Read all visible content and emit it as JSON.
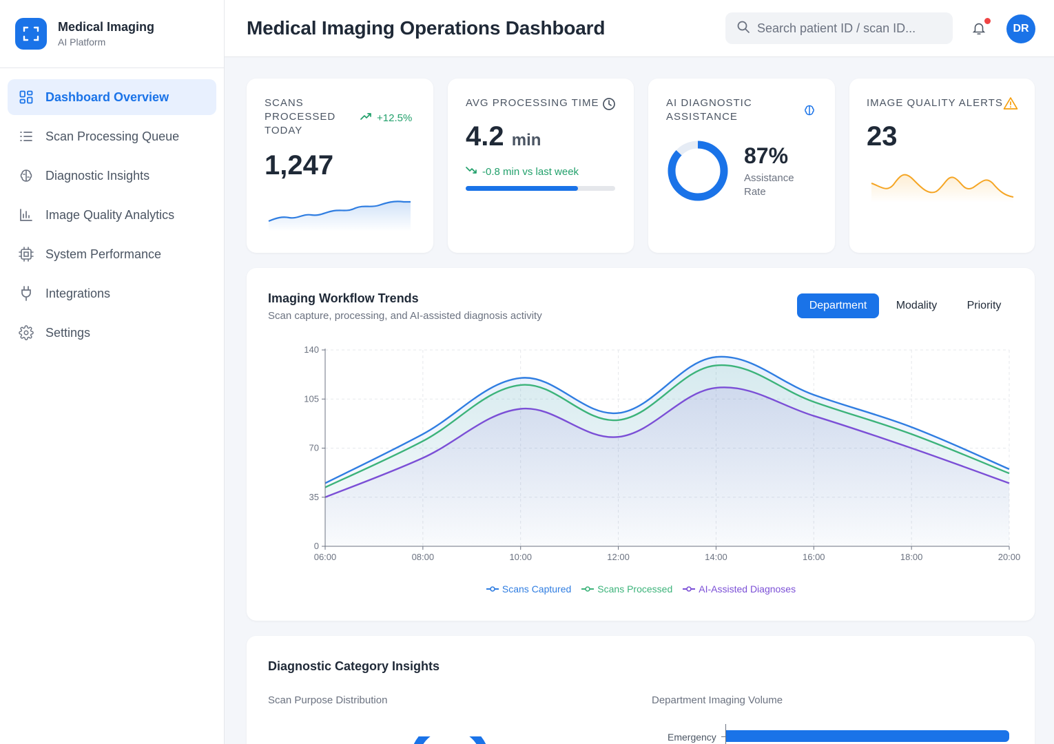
{
  "brand": {
    "title": "Medical Imaging",
    "subtitle": "AI Platform"
  },
  "sidebar": {
    "items": [
      {
        "label": "Dashboard Overview",
        "icon": "grid-icon",
        "active": true
      },
      {
        "label": "Scan Processing Queue",
        "icon": "list-icon"
      },
      {
        "label": "Diagnostic Insights",
        "icon": "brain-icon"
      },
      {
        "label": "Image Quality Analytics",
        "icon": "bar-chart-icon"
      },
      {
        "label": "System Performance",
        "icon": "cpu-icon"
      },
      {
        "label": "Integrations",
        "icon": "plug-icon"
      },
      {
        "label": "Settings",
        "icon": "gear-icon"
      }
    ]
  },
  "header": {
    "title": "Medical Imaging Operations Dashboard",
    "search_placeholder": "Search patient ID / scan ID...",
    "avatar_initials": "DR"
  },
  "kpis": {
    "scans": {
      "label": "Scans Processed Today",
      "value": "1,247",
      "trend": "+12.5%"
    },
    "processing": {
      "label": "Avg Processing Time",
      "value": "4.2",
      "unit": "min",
      "trend": "-0.8 min vs last week",
      "progress": 0.75
    },
    "ai": {
      "label": "AI Diagnostic Assistance",
      "value": "87%",
      "caption": "Assistance Rate",
      "rate": 0.87
    },
    "alerts": {
      "label": "Image Quality Alerts",
      "value": "23"
    }
  },
  "workflow": {
    "title": "Imaging Workflow Trends",
    "subtitle": "Scan capture, processing, and AI-assisted diagnosis activity",
    "tabs": [
      {
        "label": "Department",
        "active": true
      },
      {
        "label": "Modality",
        "active": false
      },
      {
        "label": "Priority",
        "active": false
      }
    ]
  },
  "chart_data": {
    "type": "line",
    "x": [
      "06:00",
      "08:00",
      "10:00",
      "12:00",
      "14:00",
      "16:00",
      "18:00",
      "20:00"
    ],
    "ylim": [
      0,
      140
    ],
    "yticks": [
      0,
      35,
      70,
      105,
      140
    ],
    "grid": true,
    "legend": "bottom-center",
    "series": [
      {
        "name": "Scans Captured",
        "color": "#2f7de1",
        "values": [
          45,
          80,
          120,
          95,
          135,
          108,
          85,
          55
        ]
      },
      {
        "name": "Scans Processed",
        "color": "#3cb37a",
        "values": [
          42,
          75,
          115,
          90,
          129,
          103,
          80,
          52
        ]
      },
      {
        "name": "AI-Assisted Diagnoses",
        "color": "#7b4fd6",
        "values": [
          35,
          63,
          98,
          78,
          113,
          93,
          70,
          45
        ]
      }
    ]
  },
  "insights": {
    "title": "Diagnostic Category Insights",
    "purpose_title": "Scan Purpose Distribution",
    "department_title": "Department Imaging Volume",
    "department_first": "Emergency"
  }
}
